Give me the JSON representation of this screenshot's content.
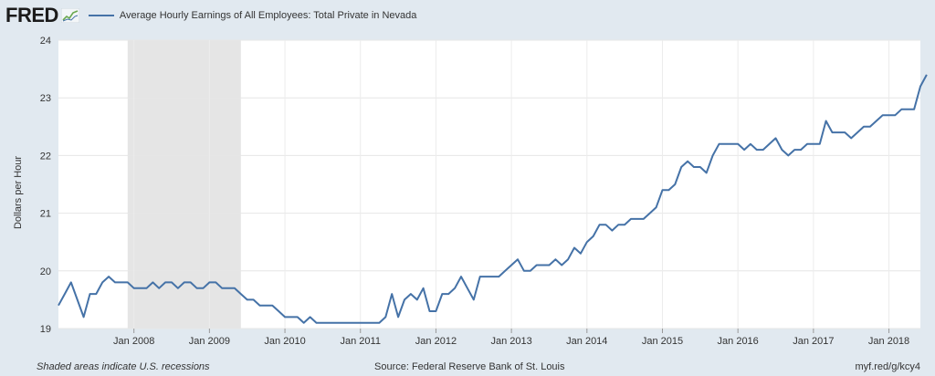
{
  "header": {
    "logo_text": "FRED",
    "logo_icon": "line-chart-icon",
    "series_color": "#4572a7"
  },
  "chart_data": {
    "type": "line",
    "title": "Average Hourly Earnings of All Employees: Total Private in Nevada",
    "xlabel": "",
    "ylabel": "Dollars per Hour",
    "ylim": [
      19,
      24
    ],
    "yticks": [
      19,
      20,
      21,
      22,
      23,
      24
    ],
    "xlim": [
      "2007-01",
      "2018-06"
    ],
    "xticks": [
      "Jan 2008",
      "Jan 2009",
      "Jan 2010",
      "Jan 2011",
      "Jan 2012",
      "Jan 2013",
      "Jan 2014",
      "Jan 2015",
      "Jan 2016",
      "Jan 2017",
      "Jan 2018"
    ],
    "recessions": [
      {
        "start": "2007-12",
        "end": "2009-06"
      }
    ],
    "grid": true,
    "series": [
      {
        "name": "Average Hourly Earnings of All Employees: Total Private in Nevada",
        "color": "#4572a7",
        "start": "2007-01",
        "values": [
          19.4,
          19.6,
          19.8,
          19.5,
          19.2,
          19.6,
          19.6,
          19.8,
          19.9,
          19.8,
          19.8,
          19.8,
          19.7,
          19.7,
          19.7,
          19.8,
          19.7,
          19.8,
          19.8,
          19.7,
          19.8,
          19.8,
          19.7,
          19.7,
          19.8,
          19.8,
          19.7,
          19.7,
          19.7,
          19.6,
          19.5,
          19.5,
          19.4,
          19.4,
          19.4,
          19.3,
          19.2,
          19.2,
          19.2,
          19.1,
          19.2,
          19.1,
          19.1,
          19.1,
          19.1,
          19.1,
          19.1,
          19.1,
          19.1,
          19.1,
          19.1,
          19.1,
          19.2,
          19.6,
          19.2,
          19.5,
          19.6,
          19.5,
          19.7,
          19.3,
          19.3,
          19.6,
          19.6,
          19.7,
          19.9,
          19.7,
          19.5,
          19.9,
          19.9,
          19.9,
          19.9,
          20.0,
          20.1,
          20.2,
          20.0,
          20.0,
          20.1,
          20.1,
          20.1,
          20.2,
          20.1,
          20.2,
          20.4,
          20.3,
          20.5,
          20.6,
          20.8,
          20.8,
          20.7,
          20.8,
          20.8,
          20.9,
          20.9,
          20.9,
          21.0,
          21.1,
          21.4,
          21.4,
          21.5,
          21.8,
          21.9,
          21.8,
          21.8,
          21.7,
          22.0,
          22.2,
          22.2,
          22.2,
          22.2,
          22.1,
          22.2,
          22.1,
          22.1,
          22.2,
          22.3,
          22.1,
          22.0,
          22.1,
          22.1,
          22.2,
          22.2,
          22.2,
          22.6,
          22.4,
          22.4,
          22.4,
          22.3,
          22.4,
          22.5,
          22.5,
          22.6,
          22.7,
          22.7,
          22.7,
          22.8,
          22.8,
          22.8,
          23.2,
          23.4
        ]
      }
    ]
  },
  "footer": {
    "note": "Shaded areas indicate U.S. recessions",
    "source": "Source: Federal Reserve Bank of St. Louis",
    "short_url": "myf.red/g/kcy4"
  }
}
